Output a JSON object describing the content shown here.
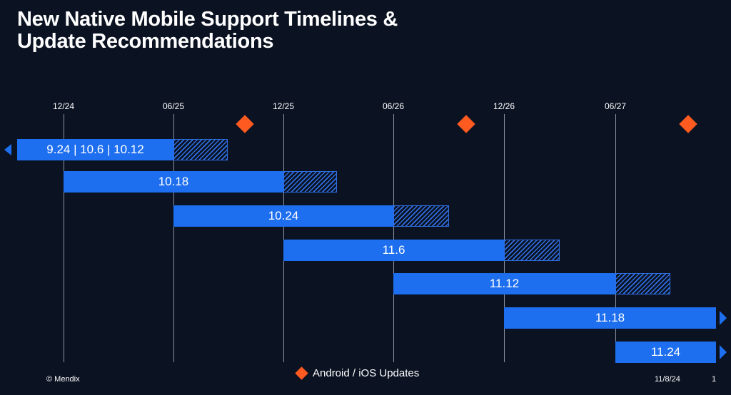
{
  "title_line1": "New Native Mobile Support Timelines &",
  "title_line2": "Update Recommendations",
  "timeline": {
    "ticks": [
      "12/24",
      "06/25",
      "12/25",
      "06/26",
      "12/26",
      "06/27"
    ],
    "android_ios_update_markers": [
      "after 06/25",
      "after 06/26",
      "after 06/27"
    ],
    "versions": [
      {
        "label": "9.24 | 10.6 | 10.12",
        "full_support_until": "06/25",
        "extended_support": true,
        "continues_before_start": true
      },
      {
        "label": "10.18",
        "full_support_from": "12/24",
        "full_support_until": "12/25",
        "extended_support": true
      },
      {
        "label": "10.24",
        "full_support_from": "06/25",
        "full_support_until": "06/26",
        "extended_support": true
      },
      {
        "label": "11.6",
        "full_support_from": "12/25",
        "full_support_until": "12/26",
        "extended_support": true
      },
      {
        "label": "11.12",
        "full_support_from": "06/26",
        "full_support_until": "06/27",
        "extended_support": true
      },
      {
        "label": "11.18",
        "full_support_from": "12/26",
        "continues_beyond": true
      },
      {
        "label": "11.24",
        "full_support_from": "06/27",
        "continues_beyond": true
      }
    ]
  },
  "legend": {
    "label": "Android / iOS Updates"
  },
  "colors": {
    "background": "#0b1222",
    "bar": "#1e6ff0",
    "marker": "#ff5a1f"
  },
  "footer": {
    "copyright": "© Mendix",
    "date": "11/8/24",
    "page": "1"
  }
}
